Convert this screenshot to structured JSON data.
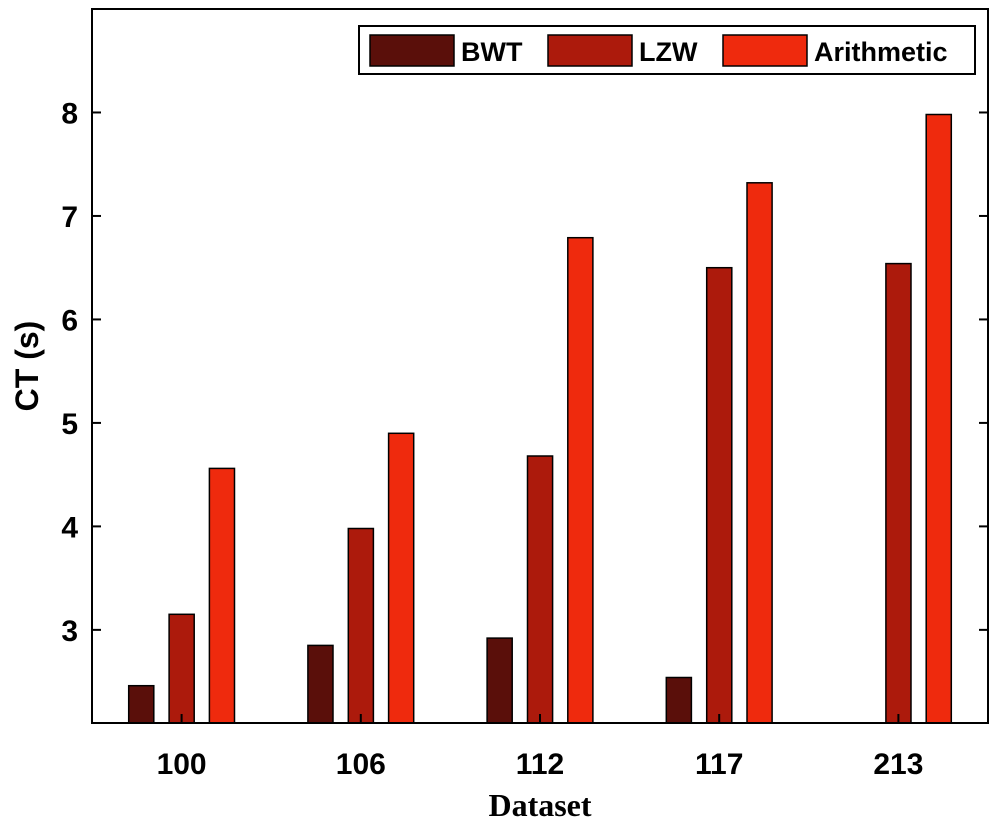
{
  "chart_data": {
    "type": "bar",
    "categories": [
      "100",
      "106",
      "112",
      "117",
      "213"
    ],
    "series": [
      {
        "name": "BWT",
        "color": "#5a0f0a",
        "values": [
          2.46,
          2.85,
          2.92,
          2.54,
          null
        ]
      },
      {
        "name": "LZW",
        "color": "#ac1a0c",
        "values": [
          3.15,
          3.98,
          4.68,
          6.5,
          6.54
        ]
      },
      {
        "name": "Arithmetic",
        "color": "#ef2a0d",
        "values": [
          4.56,
          4.9,
          6.79,
          7.32,
          7.98
        ]
      }
    ],
    "title": "",
    "xlabel": "Dataset",
    "ylabel": "CT (s)",
    "ylim": [
      2.1,
      9.0
    ],
    "yticks": [
      3,
      4,
      5,
      6,
      7,
      8
    ],
    "grid": false,
    "legend_position": "top-right",
    "legend_orientation": "horizontal"
  }
}
